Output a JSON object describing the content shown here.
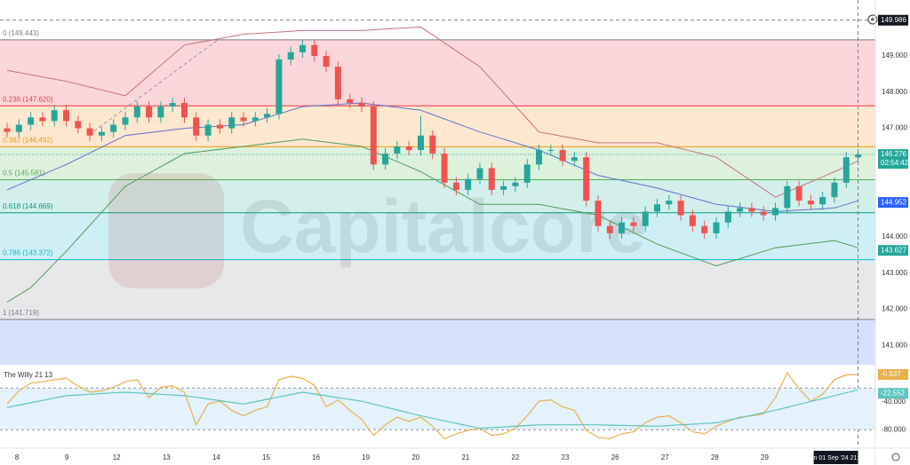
{
  "chart_data": {
    "type": "candlestick",
    "watermark": "Capitalcore",
    "up_color": "#26a69a",
    "down_color": "#ef5350",
    "candles": {
      "open": [
        147.0,
        146.9,
        147.1,
        147.3,
        147.2,
        147.5,
        147.2,
        147.0,
        146.8,
        146.9,
        147.1,
        147.3,
        147.6,
        147.3,
        147.6,
        147.7,
        147.3,
        146.8,
        147.1,
        147.0,
        147.3,
        147.2,
        147.3,
        147.4,
        148.9,
        149.1,
        149.3,
        149.0,
        148.7,
        147.8,
        147.7,
        147.6,
        146.0,
        146.3,
        146.5,
        146.4,
        146.8,
        146.3,
        145.5,
        145.3,
        145.6,
        145.9,
        145.3,
        145.4,
        145.5,
        146.0,
        146.4,
        146.4,
        146.1,
        146.2,
        145.0,
        144.3,
        144.1,
        144.4,
        144.3,
        144.7,
        144.9,
        145.0,
        144.6,
        144.3,
        144.1,
        144.4,
        144.7,
        144.8,
        144.7,
        144.6,
        144.8,
        145.4,
        145.0,
        144.9,
        145.1,
        145.5,
        146.2
      ],
      "high": [
        147.15,
        147.25,
        147.45,
        147.45,
        147.65,
        147.65,
        147.35,
        147.15,
        147.05,
        147.25,
        147.45,
        147.75,
        147.75,
        147.75,
        147.85,
        147.85,
        147.45,
        147.25,
        147.25,
        147.45,
        147.45,
        147.45,
        147.55,
        149.05,
        149.25,
        149.45,
        149.45,
        149.15,
        148.85,
        147.95,
        147.85,
        147.75,
        146.45,
        146.65,
        146.65,
        147.35,
        146.95,
        146.45,
        145.65,
        145.75,
        146.05,
        146.05,
        145.55,
        145.65,
        146.15,
        146.55,
        146.55,
        146.55,
        146.35,
        146.35,
        145.15,
        144.45,
        144.55,
        144.55,
        144.85,
        145.05,
        145.15,
        145.15,
        144.75,
        144.45,
        144.55,
        144.85,
        144.95,
        144.95,
        144.85,
        144.95,
        145.55,
        145.55,
        145.15,
        145.25,
        145.65,
        146.35,
        146.35
      ],
      "low": [
        146.75,
        146.75,
        146.95,
        147.05,
        147.05,
        147.05,
        146.85,
        146.65,
        146.65,
        146.75,
        146.95,
        147.15,
        147.15,
        147.15,
        147.45,
        147.15,
        146.65,
        146.65,
        146.85,
        146.85,
        147.05,
        147.05,
        147.15,
        147.25,
        148.75,
        148.95,
        148.85,
        148.55,
        147.65,
        147.55,
        147.45,
        145.85,
        145.85,
        146.15,
        146.25,
        146.25,
        146.15,
        145.35,
        145.15,
        145.15,
        145.45,
        145.15,
        145.15,
        145.25,
        145.35,
        145.85,
        146.25,
        145.95,
        145.95,
        144.85,
        144.15,
        143.95,
        143.95,
        144.15,
        144.15,
        144.55,
        144.75,
        144.45,
        144.15,
        143.95,
        143.95,
        144.25,
        144.55,
        144.55,
        144.45,
        144.45,
        144.65,
        144.85,
        144.75,
        144.75,
        144.95,
        145.35,
        146.1
      ],
      "close": [
        146.9,
        147.1,
        147.3,
        147.2,
        147.5,
        147.2,
        147.0,
        146.8,
        146.9,
        147.1,
        147.3,
        147.6,
        147.3,
        147.6,
        147.7,
        147.3,
        146.8,
        147.1,
        147.0,
        147.3,
        147.2,
        147.3,
        147.4,
        148.9,
        149.1,
        149.3,
        149.0,
        148.7,
        147.8,
        147.7,
        147.6,
        146.0,
        146.3,
        146.5,
        146.4,
        146.8,
        146.3,
        145.5,
        145.3,
        145.6,
        145.9,
        145.3,
        145.4,
        145.5,
        146.0,
        146.4,
        146.4,
        146.1,
        146.2,
        145.0,
        144.3,
        144.1,
        144.4,
        144.3,
        144.7,
        144.9,
        145.0,
        144.6,
        144.3,
        144.1,
        144.4,
        144.7,
        144.8,
        144.7,
        144.6,
        144.8,
        145.4,
        145.0,
        144.9,
        145.1,
        145.5,
        146.2,
        146.276
      ]
    },
    "bollinger": {
      "upper": {
        "color": "#c2727f",
        "values": [
          148.6,
          148.54,
          148.48,
          148.42,
          148.36,
          148.3,
          148.22,
          148.14,
          148.06,
          147.98,
          147.9,
          148.18,
          148.46,
          148.74,
          149.02,
          149.3,
          149.36,
          149.42,
          149.48,
          149.54,
          149.6,
          149.62,
          149.64,
          149.66,
          149.68,
          149.7,
          149.7,
          149.7,
          149.7,
          149.7,
          149.7,
          149.72,
          149.74,
          149.76,
          149.78,
          149.8,
          149.58,
          149.36,
          149.14,
          148.92,
          148.7,
          148.34,
          147.98,
          147.62,
          147.26,
          146.9,
          146.84,
          146.78,
          146.72,
          146.66,
          146.6,
          146.6,
          146.6,
          146.6,
          146.6,
          146.6,
          146.52,
          146.44,
          146.36,
          146.28,
          146.2,
          145.98,
          145.76,
          145.54,
          145.32,
          145.1,
          145.24,
          145.38,
          145.52,
          145.66,
          145.8,
          145.95,
          146.1
        ]
      },
      "middle": {
        "color": "#5e6fd0",
        "values": [
          145.3,
          145.44,
          145.58,
          145.72,
          145.86,
          146.0,
          146.16,
          146.32,
          146.48,
          146.64,
          146.8,
          146.84,
          146.88,
          146.92,
          146.96,
          147.0,
          147.02,
          147.04,
          147.06,
          147.08,
          147.1,
          147.2,
          147.3,
          147.4,
          147.5,
          147.6,
          147.62,
          147.64,
          147.66,
          147.68,
          147.7,
          147.66,
          147.62,
          147.58,
          147.54,
          147.5,
          147.38,
          147.26,
          147.14,
          147.02,
          146.9,
          146.8,
          146.7,
          146.6,
          146.5,
          146.4,
          146.26,
          146.12,
          145.98,
          145.84,
          145.7,
          145.63,
          145.56,
          145.49,
          145.42,
          145.35,
          145.26,
          145.17,
          145.08,
          144.99,
          144.9,
          144.86,
          144.82,
          144.78,
          144.74,
          144.7,
          144.72,
          144.74,
          144.76,
          144.78,
          144.8,
          144.9,
          145.0
        ]
      },
      "lower": {
        "color": "#4f9a56",
        "values": [
          142.2,
          142.4,
          142.6,
          142.93,
          143.27,
          143.6,
          143.96,
          144.32,
          144.68,
          145.04,
          145.4,
          145.58,
          145.76,
          145.94,
          146.12,
          146.3,
          146.34,
          146.38,
          146.42,
          146.46,
          146.5,
          146.54,
          146.58,
          146.62,
          146.66,
          146.7,
          146.66,
          146.62,
          146.58,
          146.54,
          146.5,
          146.36,
          146.22,
          146.08,
          145.94,
          145.8,
          145.62,
          145.44,
          145.26,
          145.08,
          144.9,
          144.9,
          144.9,
          144.9,
          144.9,
          144.9,
          144.84,
          144.78,
          144.72,
          144.66,
          144.6,
          144.44,
          144.28,
          144.12,
          143.96,
          143.8,
          143.68,
          143.56,
          143.44,
          143.32,
          143.2,
          143.3,
          143.4,
          143.5,
          143.6,
          143.7,
          143.74,
          143.78,
          143.82,
          143.86,
          143.9,
          143.8,
          143.7
        ]
      }
    },
    "fibonacci": [
      {
        "value": 149.443,
        "label": "0 (149.443)",
        "color": "#787b86",
        "fill": "#fbd6da"
      },
      {
        "value": 147.62,
        "label": "0.236 (147.620)",
        "color": "#f23645",
        "fill": "#fde7cf"
      },
      {
        "value": 146.492,
        "label": "0.382 (146.492)",
        "color": "#ff9800",
        "fill": "#ddf1dd"
      },
      {
        "value": 145.581,
        "label": "0.5 (145.581)",
        "color": "#4caf50",
        "fill": "#d2efeb"
      },
      {
        "value": 144.669,
        "label": "0.618 (144.669)",
        "color": "#089981",
        "fill": "#cdeff5"
      },
      {
        "value": 143.372,
        "label": "0.786 (143.372)",
        "color": "#00bcd4",
        "fill": "#e8e8ea"
      },
      {
        "value": 141.719,
        "label": "1 (141.719)",
        "color": "#787b86",
        "fill": "#d7e0fb"
      }
    ],
    "ylim": [
      140.47,
      150.544
    ],
    "yticks": [
      {
        "value": 149,
        "label": "149.000"
      },
      {
        "value": 148,
        "label": "148.000"
      },
      {
        "value": 147,
        "label": "147.000"
      },
      {
        "value": 144,
        "label": "144.000"
      },
      {
        "value": 143,
        "label": "143.000"
      },
      {
        "value": 142,
        "label": "142.000"
      },
      {
        "value": 141,
        "label": "141.000"
      }
    ],
    "x_labels": [
      "8",
      "9",
      "12",
      "13",
      "14",
      "15",
      "16",
      "19",
      "20",
      "21",
      "22",
      "23",
      "26",
      "27",
      "28",
      "29"
    ],
    "crosshair": {
      "price": {
        "value": 149.986,
        "label": "149.986"
      },
      "time": "Sun 01 Sep '24  21:00"
    },
    "last_price": {
      "value": 146.276,
      "label": "146.276",
      "color": "#26a69a"
    },
    "countdown": "02:54:42",
    "price_labels": [
      {
        "value": 144.952,
        "label": "144.952",
        "color": "#2962ff"
      },
      {
        "value": 143.627,
        "label": "143.627",
        "color": "#26a69a"
      }
    ],
    "indicator": {
      "title": "The Willy 21 13",
      "ylim": [
        -104,
        11
      ],
      "yticks": [
        {
          "value": -40,
          "label": "-40.000"
        },
        {
          "value": -80,
          "label": "-80.000"
        }
      ],
      "band": [
        -20,
        -80
      ],
      "series": [
        {
          "color": "#e8b04a",
          "last_label": "-0.537",
          "values": [
            -43,
            -24,
            -13,
            -11,
            -8,
            -6,
            -17,
            -26,
            -24,
            -19,
            -11,
            -8,
            -34,
            -19,
            -17,
            -26,
            -73,
            -43,
            -39,
            -52,
            -60,
            -52,
            -47,
            -8,
            -3,
            -6,
            -16,
            -47,
            -37,
            -52,
            -65,
            -88,
            -73,
            -62,
            -68,
            -62,
            -75,
            -93,
            -86,
            -81,
            -78,
            -88,
            -86,
            -78,
            -60,
            -39,
            -37,
            -47,
            -52,
            -81,
            -91,
            -93,
            -86,
            -83,
            -70,
            -62,
            -60,
            -70,
            -83,
            -86,
            -75,
            -68,
            -62,
            -60,
            -57,
            -34,
            2,
            -21,
            -39,
            -29,
            -8,
            -1,
            -0.537
          ]
        },
        {
          "color": "#5cc5c0",
          "last_label": "-22.552",
          "values": [
            -48,
            -44.6,
            -41.2,
            -37.8,
            -34.4,
            -31,
            -30,
            -29,
            -28,
            -27,
            -26,
            -27,
            -28,
            -29,
            -30,
            -31,
            -33.4,
            -35.8,
            -38.2,
            -40.6,
            -43,
            -39.6,
            -36.2,
            -32.8,
            -29.4,
            -26,
            -28.6,
            -31.2,
            -33.8,
            -36.4,
            -39,
            -43.2,
            -47.4,
            -51.6,
            -55.8,
            -60,
            -63.6,
            -67.2,
            -70.8,
            -74.4,
            -78,
            -77,
            -76,
            -75,
            -74,
            -73,
            -73,
            -73,
            -73,
            -73,
            -73,
            -73.4,
            -73.8,
            -74.2,
            -74.6,
            -75,
            -74,
            -73,
            -72,
            -71,
            -70,
            -66.4,
            -62.8,
            -59.2,
            -55.6,
            -52,
            -47.8,
            -43.6,
            -39.4,
            -35.2,
            -31,
            -26.8,
            -22.552
          ]
        }
      ]
    }
  }
}
